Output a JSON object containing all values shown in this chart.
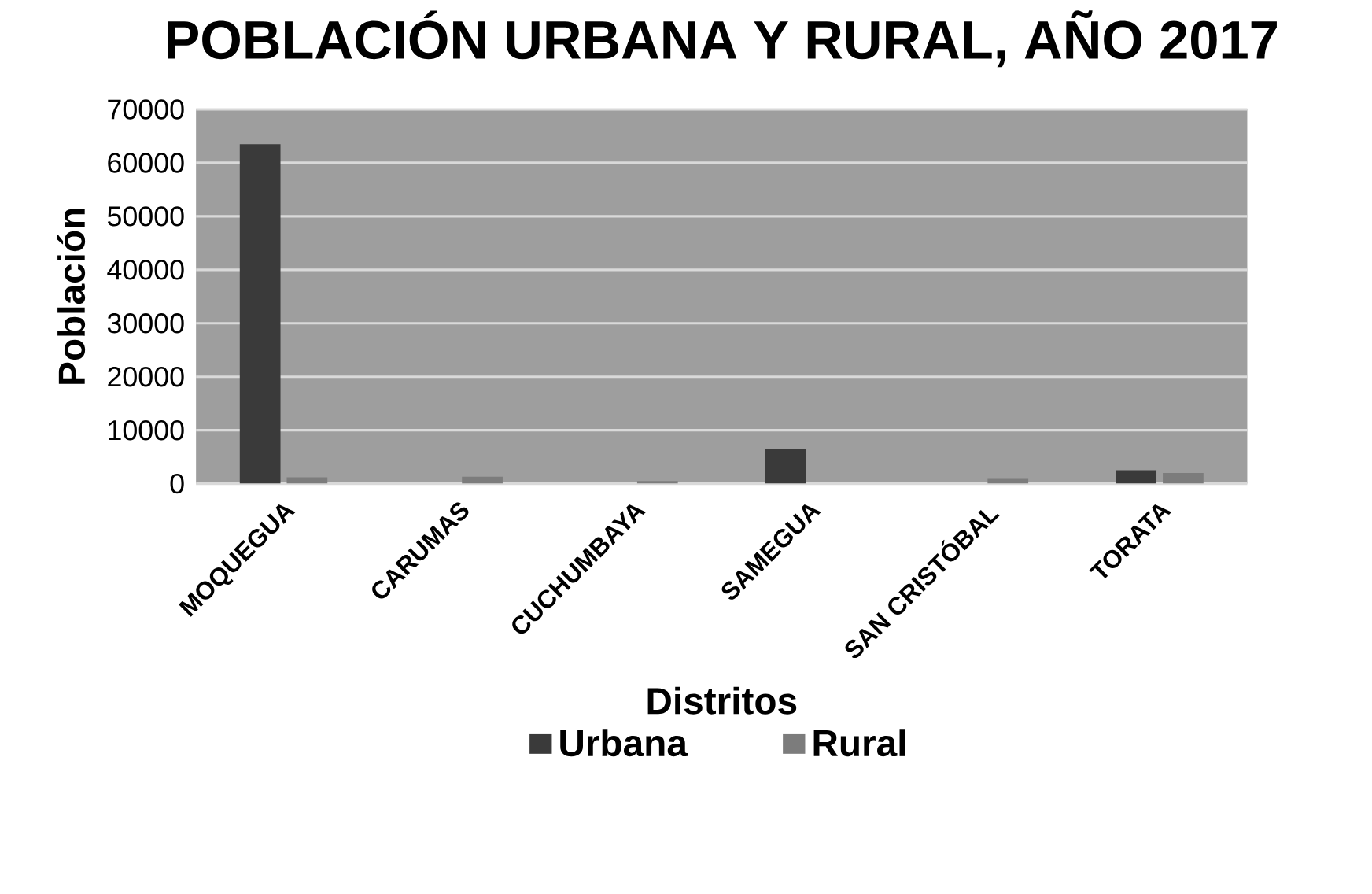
{
  "chart_data": {
    "type": "bar",
    "title": "POBLACIÓN URBANA Y RURAL, AÑO 2017",
    "xlabel": "Distritos",
    "ylabel": "Población",
    "categories": [
      "MOQUEGUA",
      "CARUMAS",
      "CUCHUMBAYA",
      "SAMEGUA",
      "SAN CRISTÓBAL",
      "TORATA"
    ],
    "series": [
      {
        "name": "Urbana",
        "color": "#3a3a3a",
        "values": [
          63500,
          0,
          0,
          6500,
          0,
          2500
        ]
      },
      {
        "name": "Rural",
        "color": "#7c7c7c",
        "values": [
          1200,
          1300,
          500,
          null,
          900,
          2000
        ]
      }
    ],
    "ylim": [
      0,
      70000
    ],
    "yticks": [
      0,
      10000,
      20000,
      30000,
      40000,
      50000,
      60000,
      70000
    ],
    "grid": "y",
    "legend": "bottom"
  }
}
